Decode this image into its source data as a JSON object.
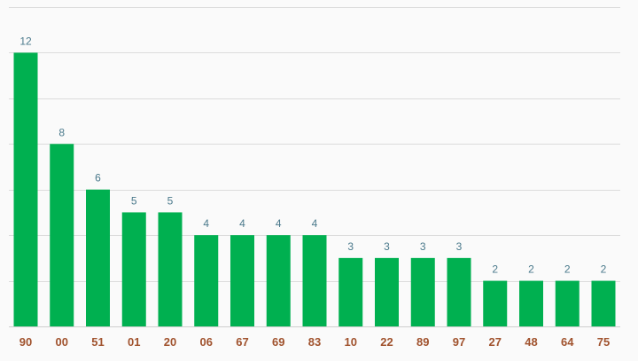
{
  "chart_data": {
    "type": "bar",
    "categories": [
      "90",
      "00",
      "51",
      "01",
      "20",
      "06",
      "67",
      "69",
      "83",
      "10",
      "22",
      "89",
      "97",
      "27",
      "48",
      "64",
      "75"
    ],
    "values": [
      12,
      8,
      6,
      5,
      5,
      4,
      4,
      4,
      4,
      3,
      3,
      3,
      3,
      2,
      2,
      2,
      2
    ],
    "title": "",
    "xlabel": "",
    "ylabel": "",
    "ylim": [
      0,
      14
    ],
    "grid": true,
    "grid_step": 2,
    "y_tick_labels_shown": false,
    "data_labels": true,
    "colors": {
      "bar": "#00b050",
      "value_label": "#4b7a8c",
      "category_label": "#a0522d",
      "grid": "#dcdcdc",
      "background": "#fafafa"
    }
  }
}
